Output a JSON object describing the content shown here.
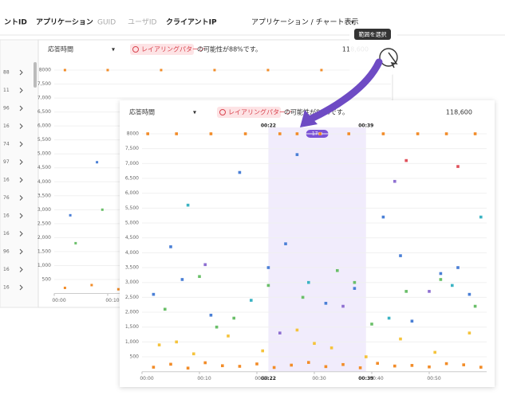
{
  "header": {
    "tabs": [
      "ントID",
      "アプリケーション",
      "GUID",
      "ユーザID",
      "クライアントIP"
    ],
    "view": "アプリケーション / チャート表示"
  },
  "rows": [
    "88",
    "11",
    "96",
    "16",
    "74",
    "97",
    "16",
    "76",
    "16",
    "16",
    "96",
    "16",
    "16"
  ],
  "tooltip": "範囲を選択",
  "chart_data": [
    {
      "type": "scatter",
      "metric": "応答時間",
      "alert": "レイアリングパターン",
      "alert_text": "の可能性が88%です。",
      "count": "118,600",
      "xlim": [
        0,
        63
      ],
      "ylim": [
        0,
        8000
      ],
      "xticks": [
        {
          "value": 0,
          "label": "00:00"
        },
        {
          "value": 10,
          "label": "00:10"
        }
      ],
      "yticks": [
        500,
        {
          "value": 1000,
          "label": "1,000"
        },
        {
          "value": 1500,
          "label": "1,500"
        },
        {
          "value": 2000,
          "label": "2,000"
        },
        {
          "value": 2500,
          "label": "2,500"
        },
        {
          "value": 3000,
          "label": "3,000"
        },
        {
          "value": 3500,
          "label": "3,500"
        },
        {
          "value": 4000,
          "label": "4,000"
        },
        {
          "value": 4500,
          "label": "4,500"
        },
        {
          "value": 5000,
          "label": "5,000"
        },
        {
          "value": 5500,
          "label": "5,500"
        },
        {
          "value": 6000,
          "label": "6,000"
        },
        {
          "value": 6500,
          "label": "6,500"
        },
        {
          "value": 7000,
          "label": "7,000"
        },
        {
          "value": 7500,
          "label": "7,500"
        },
        8000
      ],
      "series": [
        {
          "color": "#f28c28",
          "x": [
            2,
            10,
            20,
            30,
            40,
            50,
            60
          ],
          "y": [
            8000,
            8000,
            8000,
            8000,
            8000,
            8000,
            8000
          ]
        },
        {
          "color": "#4a7fd6",
          "x": [
            3,
            8,
            14,
            19,
            25,
            31,
            37
          ],
          "y": [
            2800,
            4700,
            6000,
            3200,
            2000,
            3600,
            2500
          ]
        },
        {
          "color": "#6abf69",
          "x": [
            4,
            9,
            15,
            22,
            28
          ],
          "y": [
            1800,
            3000,
            1200,
            2600,
            2200
          ]
        },
        {
          "color": "#f28c28",
          "x": [
            2,
            7,
            12,
            17,
            22,
            27
          ],
          "y": [
            200,
            300,
            150,
            250,
            180,
            220
          ]
        }
      ]
    },
    {
      "type": "scatter",
      "metric": "応答時間",
      "alert": "レイアリングパターン",
      "alert_text": "の可能性が88%です。",
      "count": "118,600",
      "xlim": [
        0,
        60
      ],
      "ylim": [
        0,
        8000
      ],
      "xticks": [
        {
          "value": 0,
          "label": "00:00"
        },
        {
          "value": 10,
          "label": "00:10"
        },
        {
          "value": 20,
          "label": "00:20"
        },
        {
          "value": 30,
          "label": "00:30"
        },
        {
          "value": 40,
          "label": "00:40"
        },
        {
          "value": 50,
          "label": "00:50"
        }
      ],
      "yticks": [
        500,
        {
          "value": 1000,
          "label": "1,000"
        },
        {
          "value": 1500,
          "label": "1,500"
        },
        {
          "value": 2000,
          "label": "2,000"
        },
        {
          "value": 2500,
          "label": "2,500"
        },
        {
          "value": 3000,
          "label": "3,000"
        },
        {
          "value": 3500,
          "label": "3,500"
        },
        {
          "value": 4000,
          "label": "4,000"
        },
        {
          "value": 4500,
          "label": "4,500"
        },
        {
          "value": 5000,
          "label": "5,000"
        },
        {
          "value": 5500,
          "label": "5,500"
        },
        {
          "value": 6000,
          "label": "6,000"
        },
        {
          "value": 6500,
          "label": "6,500"
        },
        {
          "value": 7000,
          "label": "7,000"
        },
        {
          "value": 7500,
          "label": "7,500"
        },
        8000
      ],
      "selection": {
        "x": [
          {
            "value": 22,
            "label": "00:22"
          },
          {
            "value": 39,
            "label": "00:39"
          }
        ],
        "duration": "17m"
      },
      "series": [
        {
          "color": "#f28c28",
          "x": [
            1,
            6,
            12,
            18,
            24,
            27,
            31,
            36,
            42,
            48,
            53,
            58
          ],
          "y": [
            8000,
            8000,
            8000,
            8000,
            8000,
            8000,
            8000,
            8000,
            8000,
            8000,
            8000,
            8000
          ]
        },
        {
          "color": "#f28c28",
          "x": [
            2,
            5,
            8,
            11,
            14,
            17,
            20,
            23,
            26,
            29,
            32,
            35,
            38,
            41,
            44,
            47,
            50,
            53,
            56,
            59
          ],
          "y": [
            150,
            250,
            120,
            300,
            200,
            180,
            260,
            140,
            220,
            310,
            170,
            240,
            130,
            280,
            190,
            210,
            160,
            270,
            230,
            150
          ]
        },
        {
          "color": "#f5c33b",
          "x": [
            3,
            9,
            15,
            21,
            27,
            33,
            39,
            45,
            51,
            57,
            6,
            30
          ],
          "y": [
            900,
            600,
            1200,
            700,
            1400,
            800,
            500,
            1100,
            650,
            1300,
            1000,
            950
          ]
        },
        {
          "color": "#6abf69",
          "x": [
            4,
            10,
            16,
            22,
            28,
            34,
            40,
            46,
            52,
            58,
            13,
            37
          ],
          "y": [
            2100,
            3200,
            1800,
            2900,
            2500,
            3400,
            1600,
            2700,
            3100,
            2200,
            1500,
            3000
          ]
        },
        {
          "color": "#4a7fd6",
          "x": [
            2,
            7,
            12,
            17,
            22,
            27,
            32,
            37,
            42,
            47,
            52,
            57,
            5,
            25,
            45,
            55
          ],
          "y": [
            2600,
            3100,
            1900,
            6700,
            3500,
            7300,
            2300,
            2800,
            5200,
            1700,
            3300,
            2600,
            4200,
            4300,
            3900,
            3500
          ]
        },
        {
          "color": "#3bb3c3",
          "x": [
            8,
            19,
            29,
            43,
            54,
            59
          ],
          "y": [
            5600,
            2400,
            3000,
            1800,
            2900,
            5200
          ]
        },
        {
          "color": "#8e6fd1",
          "x": [
            11,
            24,
            35,
            44,
            50
          ],
          "y": [
            3600,
            1300,
            2200,
            6400,
            2700
          ]
        },
        {
          "color": "#e0505a",
          "x": [
            46,
            55
          ],
          "y": [
            7100,
            6900
          ]
        }
      ]
    }
  ]
}
